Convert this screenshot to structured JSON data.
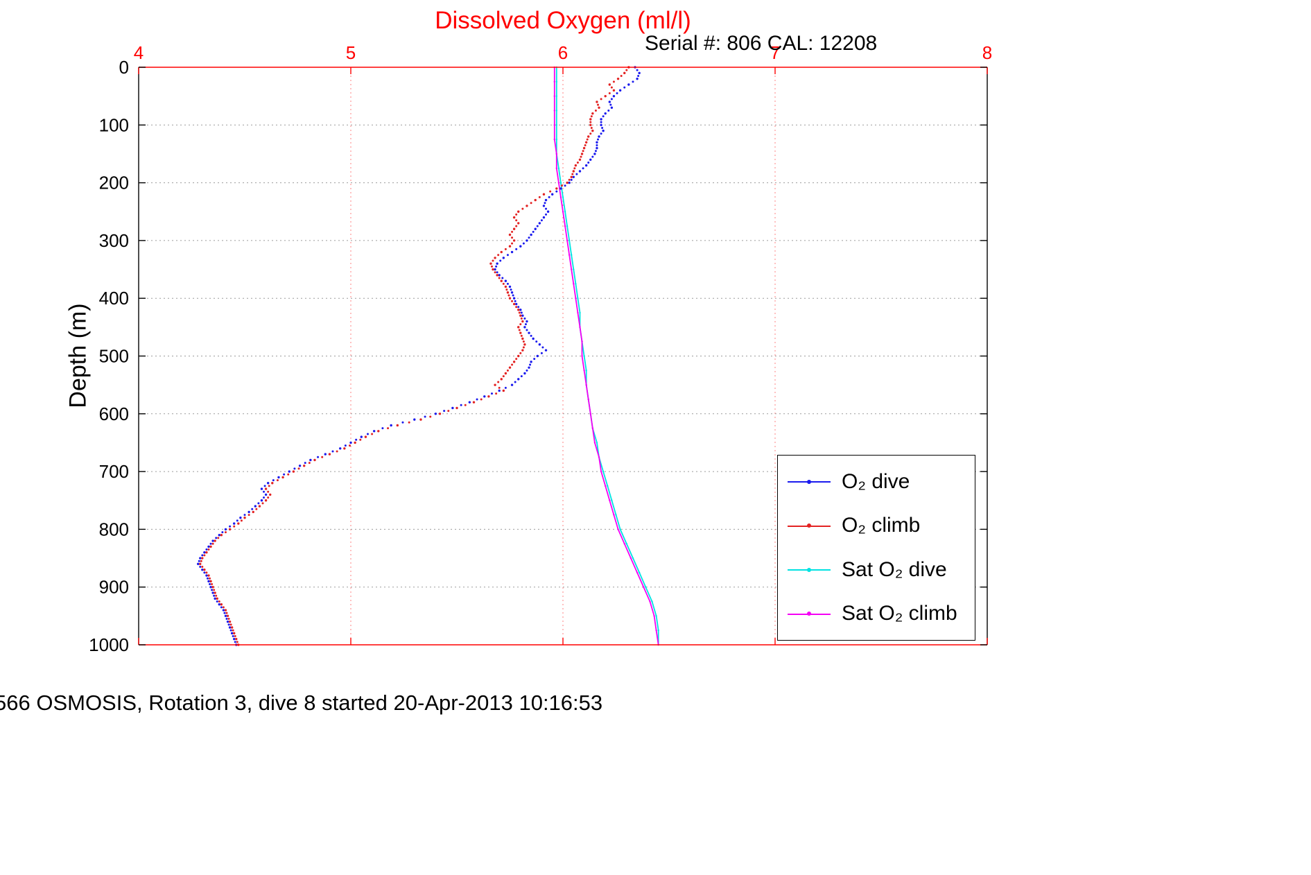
{
  "page": {
    "title": "Dissolved Oxygen (ml/l)",
    "serial_line": "Serial #: 806  CAL: 12208",
    "caption": "566 OSMOSIS, Rotation 3, dive 8 started 20-Apr-2013 10:16:53"
  },
  "chart_data": {
    "type": "scatter",
    "title": "Dissolved Oxygen (ml/l)",
    "xlabel": "Dissolved Oxygen (ml/l)",
    "ylabel": "Depth (m)",
    "x_axis": {
      "min": 4,
      "max": 8,
      "ticks": [
        4,
        5,
        6,
        7,
        8
      ],
      "color": "#ff0000",
      "location": "top"
    },
    "y_axis": {
      "min": 0,
      "max": 1000,
      "ticks": [
        0,
        100,
        200,
        300,
        400,
        500,
        600,
        700,
        800,
        900,
        1000
      ],
      "color": "#000000",
      "direction": "down"
    },
    "grid": {
      "on": true,
      "x_grid": [
        5,
        6,
        7
      ],
      "y_grid": [
        100,
        200,
        300,
        400,
        500,
        600,
        700,
        800,
        900
      ],
      "x_grid_color": "#ff8080",
      "y_grid_color": "#9a9a9a"
    },
    "legend": {
      "position": "lower right"
    },
    "series": [
      {
        "name": "O₂ dive",
        "color": "#1a1aee",
        "style": "dots",
        "depth_start": 0,
        "depth_step": 10,
        "values": [
          6.34,
          6.36,
          6.35,
          6.31,
          6.27,
          6.24,
          6.22,
          6.23,
          6.2,
          6.18,
          6.18,
          6.19,
          6.17,
          6.16,
          6.16,
          6.15,
          6.13,
          6.11,
          6.08,
          6.05,
          6.03,
          5.99,
          5.95,
          5.92,
          5.91,
          5.93,
          5.91,
          5.89,
          5.87,
          5.85,
          5.83,
          5.8,
          5.76,
          5.72,
          5.69,
          5.68,
          5.7,
          5.73,
          5.75,
          5.76,
          5.77,
          5.78,
          5.8,
          5.81,
          5.83,
          5.82,
          5.84,
          5.86,
          5.89,
          5.92,
          5.88,
          5.85,
          5.84,
          5.82,
          5.79,
          5.76,
          5.7,
          5.63,
          5.56,
          5.48,
          5.4,
          5.3,
          5.19,
          5.11,
          5.05,
          5.0,
          4.95,
          4.88,
          4.81,
          4.76,
          4.71,
          4.66,
          4.61,
          4.58,
          4.6,
          4.58,
          4.55,
          4.52,
          4.48,
          4.45,
          4.41,
          4.38,
          4.35,
          4.33,
          4.31,
          4.29,
          4.28,
          4.3,
          4.32,
          4.33,
          4.34,
          4.35,
          4.36,
          4.38,
          4.4,
          4.41,
          4.42,
          4.43,
          4.44,
          4.45,
          4.46
        ]
      },
      {
        "name": "O₂ climb",
        "color": "#e32222",
        "style": "dots",
        "depth_start": 0,
        "depth_step": 10,
        "values": [
          6.31,
          6.29,
          6.26,
          6.22,
          6.24,
          6.2,
          6.16,
          6.17,
          6.14,
          6.13,
          6.13,
          6.14,
          6.12,
          6.11,
          6.1,
          6.09,
          6.08,
          6.06,
          6.05,
          6.04,
          6.02,
          5.97,
          5.91,
          5.87,
          5.83,
          5.79,
          5.77,
          5.79,
          5.77,
          5.75,
          5.77,
          5.75,
          5.71,
          5.68,
          5.66,
          5.67,
          5.69,
          5.71,
          5.73,
          5.74,
          5.75,
          5.77,
          5.79,
          5.8,
          5.81,
          5.79,
          5.8,
          5.81,
          5.82,
          5.81,
          5.79,
          5.77,
          5.75,
          5.73,
          5.71,
          5.68,
          5.72,
          5.65,
          5.58,
          5.5,
          5.42,
          5.33,
          5.22,
          5.13,
          5.07,
          5.02,
          4.97,
          4.9,
          4.83,
          4.78,
          4.73,
          4.68,
          4.63,
          4.6,
          4.62,
          4.6,
          4.57,
          4.54,
          4.5,
          4.47,
          4.43,
          4.39,
          4.36,
          4.34,
          4.32,
          4.3,
          4.29,
          4.31,
          4.33,
          4.34,
          4.35,
          4.36,
          4.37,
          4.39,
          4.41,
          4.42,
          4.43,
          4.44,
          4.45,
          4.46,
          4.47
        ]
      },
      {
        "name": "Sat O₂ dive",
        "color": "#00e2e2",
        "style": "line",
        "depth_start": 0,
        "depth_step": 25,
        "values": [
          5.97,
          5.97,
          5.97,
          5.97,
          5.97,
          5.97,
          5.97,
          5.98,
          5.99,
          6.0,
          6.01,
          6.02,
          6.03,
          6.04,
          6.05,
          6.06,
          6.07,
          6.08,
          6.08,
          6.09,
          6.1,
          6.11,
          6.11,
          6.12,
          6.13,
          6.14,
          6.16,
          6.17,
          6.19,
          6.21,
          6.23,
          6.25,
          6.27,
          6.3,
          6.33,
          6.36,
          6.39,
          6.42,
          6.44,
          6.45,
          6.45
        ]
      },
      {
        "name": "Sat O₂ climb",
        "color": "#f400f4",
        "style": "line",
        "depth_start": 0,
        "depth_step": 25,
        "values": [
          5.96,
          5.96,
          5.96,
          5.96,
          5.96,
          5.96,
          5.97,
          5.97,
          5.98,
          5.99,
          6.0,
          6.01,
          6.02,
          6.03,
          6.04,
          6.05,
          6.06,
          6.07,
          6.08,
          6.09,
          6.09,
          6.1,
          6.11,
          6.12,
          6.13,
          6.14,
          6.15,
          6.17,
          6.18,
          6.2,
          6.22,
          6.24,
          6.26,
          6.29,
          6.32,
          6.35,
          6.38,
          6.41,
          6.43,
          6.44,
          6.45
        ]
      }
    ]
  }
}
